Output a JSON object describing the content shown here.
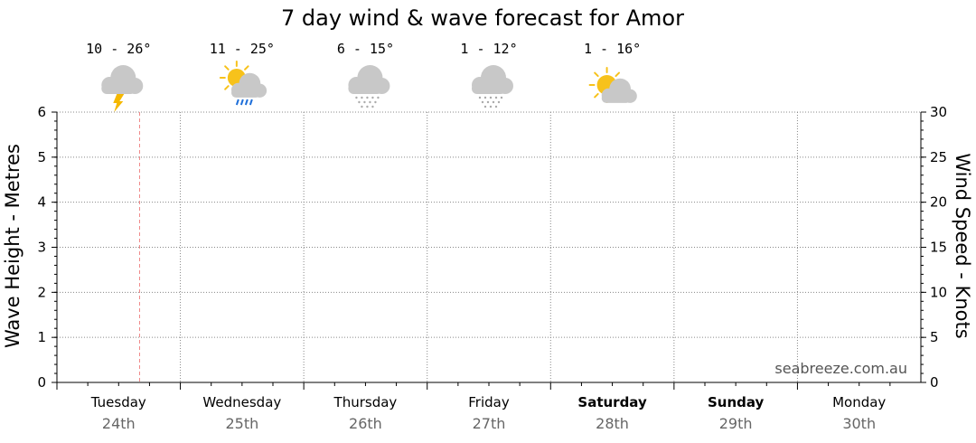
{
  "chart_data": {
    "type": "line",
    "title": "7 day wind & wave forecast for Amor",
    "ylabel": "Wave Height - Metres",
    "y2label": "Wind Speed - Knots",
    "ylim": [
      0,
      6
    ],
    "y2lim": [
      0,
      30
    ],
    "yticks": [
      "0",
      "1",
      "2",
      "3",
      "4",
      "5",
      "6"
    ],
    "y2ticks": [
      "0",
      "5",
      "10",
      "15",
      "20",
      "25",
      "30"
    ],
    "grid": true,
    "days": [
      {
        "name": "Tuesday",
        "date": "24th",
        "bold": false
      },
      {
        "name": "Wednesday",
        "date": "25th",
        "bold": false
      },
      {
        "name": "Thursday",
        "date": "26th",
        "bold": false
      },
      {
        "name": "Friday",
        "date": "27th",
        "bold": false
      },
      {
        "name": "Saturday",
        "date": "28th",
        "bold": true
      },
      {
        "name": "Sunday",
        "date": "29th",
        "bold": true
      },
      {
        "name": "Monday",
        "date": "30th",
        "bold": false
      }
    ],
    "forecast": [
      {
        "temp": "10 - 26°",
        "icon": "thunderstorm-cloud-icon"
      },
      {
        "temp": "11 - 25°",
        "icon": "sun-cloud-rain-icon"
      },
      {
        "temp": "6 - 15°",
        "icon": "snow-cloud-icon"
      },
      {
        "temp": "1 - 12°",
        "icon": "snow-cloud-icon"
      },
      {
        "temp": "1 - 16°",
        "icon": "partly-cloudy-icon"
      }
    ],
    "series": [],
    "watermark": "seabreeze.com.au",
    "colors": {
      "current_time_line": "#f08a8a",
      "grid": "#888888",
      "sun": "#f7c21b",
      "cloud": "#c8c8c8",
      "rain": "#1e6fd9",
      "lightning": "#f5b800"
    }
  }
}
